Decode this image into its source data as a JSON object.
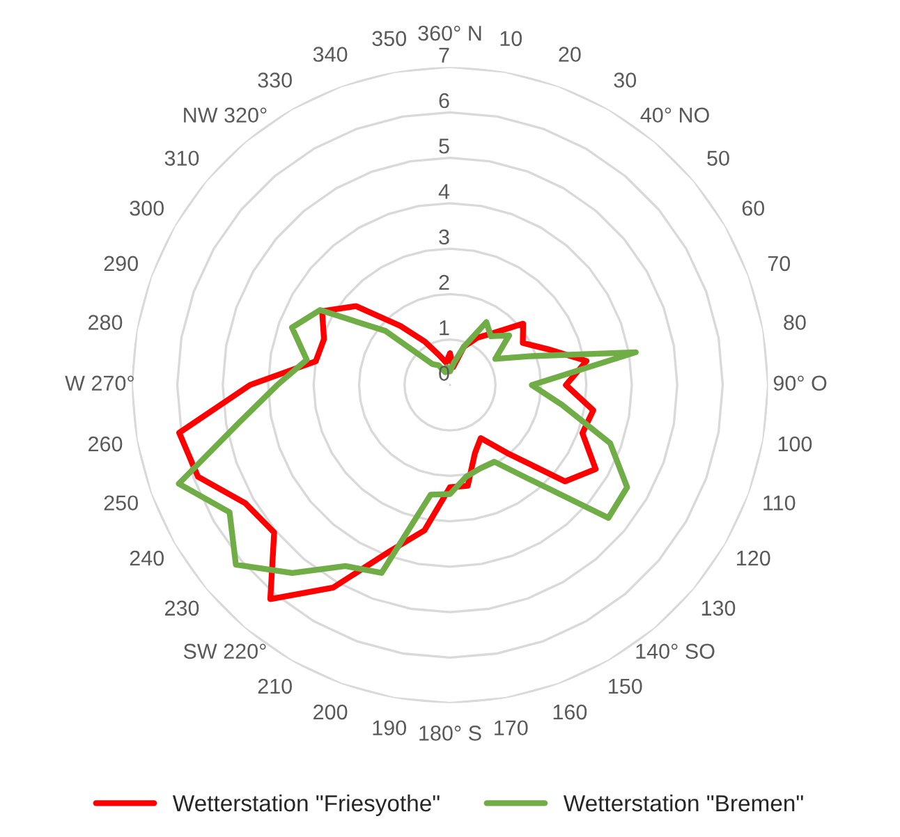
{
  "chart_data": {
    "type": "radar",
    "categories": [
      "360° N",
      "10",
      "20",
      "30",
      "40° NO",
      "50",
      "60",
      "70",
      "80",
      "90° O",
      "100",
      "110",
      "120",
      "130",
      "140° SO",
      "150",
      "160",
      "170",
      "180° S",
      "190",
      "200",
      "210",
      "SW 220°",
      "230",
      "240",
      "250",
      "260",
      "W 270°",
      "280",
      "290",
      "300",
      "310",
      "NW 320°",
      "330",
      "340",
      "350"
    ],
    "series": [
      {
        "name": "Wetterstation \"Friesyothe\"",
        "color": "#ff0000",
        "values": [
          0.7,
          0.4,
          0.9,
          1.2,
          1.5,
          2.1,
          1.85,
          2.3,
          3.05,
          2.55,
          3.2,
          3.1,
          3.7,
          3.3,
          1.95,
          1.35,
          1.6,
          2.25,
          2.25,
          3.25,
          3.9,
          5.15,
          6.15,
          5.05,
          5.2,
          5.9,
          6.05,
          4.4,
          3.0,
          2.95,
          3.25,
          2.7,
          1.7,
          1.1,
          0.7,
          0.5
        ]
      },
      {
        "name": "Wetterstation \"Bremen\"",
        "color": "#70ad47",
        "values": [
          0.3,
          0.5,
          0.9,
          1.6,
          1.4,
          1.7,
          1.15,
          1.85,
          4.15,
          1.8,
          2.5,
          3.75,
          4.5,
          4.55,
          2.7,
          1.95,
          1.95,
          2.05,
          2.4,
          2.45,
          4.4,
          4.6,
          5.4,
          6.15,
          5.6,
          6.35,
          4.7,
          3.8,
          3.2,
          3.7,
          3.3,
          1.85,
          0.6,
          0.5,
          0.3,
          0.4
        ]
      }
    ],
    "ylim": [
      0,
      7
    ],
    "yticks": [
      0,
      1,
      2,
      3,
      4,
      5,
      6,
      7
    ],
    "grid": true,
    "legend": "bottom",
    "line_style": "solid",
    "marker": "none"
  }
}
